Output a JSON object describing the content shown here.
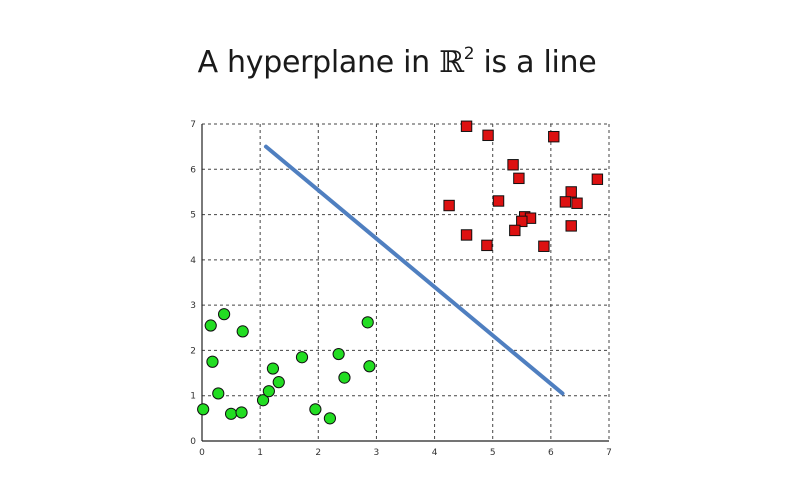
{
  "slide": {
    "title_prefix": "A hyperplane in ",
    "title_symbol": "ℝ",
    "title_exponent": "2",
    "title_suffix": " is a line"
  },
  "chart_data": {
    "type": "scatter",
    "xlim": [
      0,
      7
    ],
    "ylim": [
      0,
      7
    ],
    "x_ticks": [
      "0",
      "1",
      "2",
      "3",
      "4",
      "5",
      "6",
      "7"
    ],
    "y_ticks": [
      "0",
      "1",
      "2",
      "3",
      "4",
      "5",
      "6",
      "7"
    ],
    "grid": true,
    "grid_style": "dashed",
    "series": [
      {
        "marker": "circle",
        "color": "#22dd22",
        "points": [
          [
            0.02,
            0.7
          ],
          [
            0.15,
            2.55
          ],
          [
            0.18,
            1.75
          ],
          [
            0.28,
            1.05
          ],
          [
            0.38,
            2.8
          ],
          [
            0.5,
            0.6
          ],
          [
            0.68,
            0.63
          ],
          [
            0.7,
            2.42
          ],
          [
            1.05,
            0.9
          ],
          [
            1.15,
            1.1
          ],
          [
            1.22,
            1.6
          ],
          [
            1.32,
            1.3
          ],
          [
            1.72,
            1.85
          ],
          [
            1.95,
            0.7
          ],
          [
            2.2,
            0.5
          ],
          [
            2.35,
            1.92
          ],
          [
            2.45,
            1.4
          ],
          [
            2.85,
            2.62
          ],
          [
            2.88,
            1.65
          ]
        ]
      },
      {
        "marker": "square",
        "color": "#dd1111",
        "points": [
          [
            4.55,
            6.95
          ],
          [
            4.92,
            6.75
          ],
          [
            6.05,
            6.72
          ],
          [
            5.35,
            6.1
          ],
          [
            5.45,
            5.8
          ],
          [
            6.8,
            5.78
          ],
          [
            6.35,
            5.5
          ],
          [
            5.1,
            5.3
          ],
          [
            6.25,
            5.28
          ],
          [
            6.45,
            5.25
          ],
          [
            4.25,
            5.2
          ],
          [
            5.55,
            4.95
          ],
          [
            5.65,
            4.92
          ],
          [
            5.5,
            4.85
          ],
          [
            6.35,
            4.75
          ],
          [
            5.38,
            4.65
          ],
          [
            4.55,
            4.55
          ],
          [
            4.9,
            4.32
          ],
          [
            5.88,
            4.3
          ]
        ]
      }
    ],
    "line": {
      "color": "#4f7fc0",
      "points": [
        [
          1.1,
          6.5
        ],
        [
          6.2,
          1.05
        ]
      ]
    }
  }
}
